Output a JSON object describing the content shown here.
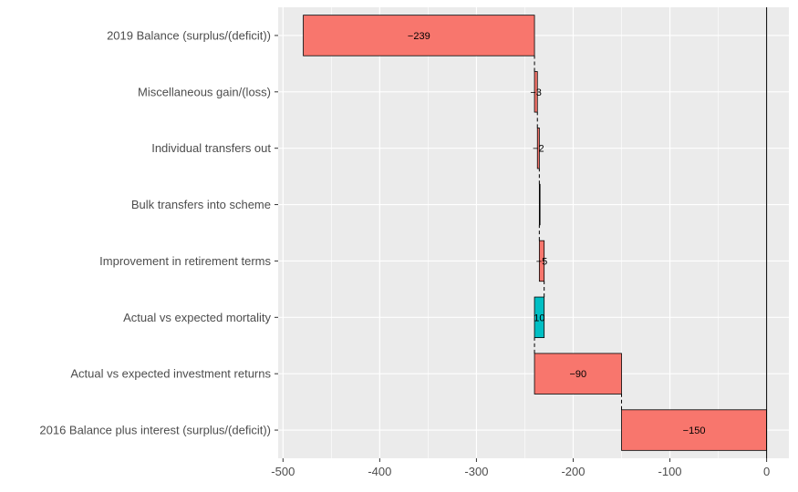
{
  "chart_data": {
    "type": "bar",
    "orientation": "horizontal",
    "style": "waterfall",
    "categories": [
      "2016 Balance plus interest (surplus/(deficit))",
      "Actual vs expected investment returns",
      "Actual vs expected mortality",
      "Improvement in retirement terms",
      "Bulk transfers into scheme",
      "Individual transfers out",
      "Miscellaneous gain/(loss)",
      "2019 Balance (surplus/(deficit))"
    ],
    "bars": [
      {
        "start": 0,
        "end": -150,
        "label": "−150",
        "sign": "negative"
      },
      {
        "start": -150,
        "end": -240,
        "label": "−90",
        "sign": "negative"
      },
      {
        "start": -240,
        "end": -230,
        "label": "10",
        "sign": "positive"
      },
      {
        "start": -230,
        "end": -235,
        "label": "−5",
        "sign": "negative"
      },
      {
        "start": -235,
        "end": -235,
        "label": "",
        "sign": "negative"
      },
      {
        "start": -235,
        "end": -237,
        "label": "−2",
        "sign": "negative"
      },
      {
        "start": -237,
        "end": -240,
        "label": "−3",
        "sign": "negative"
      },
      {
        "start": -240,
        "end": -479,
        "label": "−239",
        "sign": "negative"
      }
    ],
    "xlim": [
      -505,
      23
    ],
    "xticks": [
      -500,
      -400,
      -300,
      -200,
      -100,
      0
    ],
    "xtick_labels": [
      "-500",
      "-400",
      "-300",
      "-200",
      "-100",
      "0"
    ],
    "title": "",
    "xlabel": "",
    "ylabel": "",
    "legend": false,
    "grid": true,
    "colors": {
      "negative": "#F8766D",
      "positive": "#00BFC4",
      "panel": "#EBEBEB",
      "grid": "#FFFFFF"
    }
  }
}
